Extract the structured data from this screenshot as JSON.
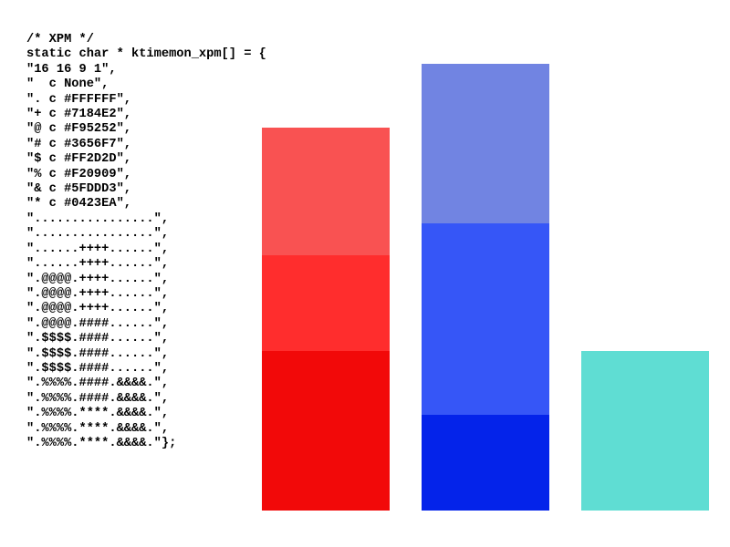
{
  "xpm_source": {
    "lines": [
      "/* XPM */",
      "static char * ktimemon_xpm[] = {",
      "\"16 16 9 1\",",
      "\"  c None\",",
      "\". c #FFFFFF\",",
      "\"+ c #7184E2\",",
      "\"@ c #F95252\",",
      "\"# c #3656F7\",",
      "\"$ c #FF2D2D\",",
      "\"% c #F20909\",",
      "\"& c #5FDDD3\",",
      "\"* c #0423EA\",",
      "\"................\",",
      "\"................\",",
      "\"......++++......\",",
      "\"......++++......\",",
      "\".@@@@.++++......\",",
      "\".@@@@.++++......\",",
      "\".@@@@.++++......\",",
      "\".@@@@.####......\",",
      "\".$$$$.####......\",",
      "\".$$$$.####......\",",
      "\".$$$$.####......\",",
      "\".%%%%.####.&&&&.\",",
      "\".%%%%.####.&&&&.\",",
      "\".%%%%.****.&&&&.\",",
      "\".%%%%.****.&&&&.\",",
      "\".%%%%.****.&&&&.\"};"
    ]
  },
  "icon": {
    "background_color": "#FFFFFF",
    "columns": [
      {
        "name": "red-column",
        "segments": [
          {
            "name": "light-red-segment",
            "color": "#F95252",
            "rows": 4
          },
          {
            "name": "medium-red-segment",
            "color": "#FF2D2D",
            "rows": 3
          },
          {
            "name": "dark-red-segment",
            "color": "#F20909",
            "rows": 5
          }
        ]
      },
      {
        "name": "blue-column",
        "segments": [
          {
            "name": "light-blue-segment",
            "color": "#7184E2",
            "rows": 5
          },
          {
            "name": "medium-blue-segment",
            "color": "#3656F7",
            "rows": 6
          },
          {
            "name": "dark-blue-segment",
            "color": "#0423EA",
            "rows": 3
          }
        ]
      },
      {
        "name": "cyan-column",
        "segments": [
          {
            "name": "cyan-segment",
            "color": "#5FDDD3",
            "rows": 5
          }
        ]
      }
    ]
  }
}
